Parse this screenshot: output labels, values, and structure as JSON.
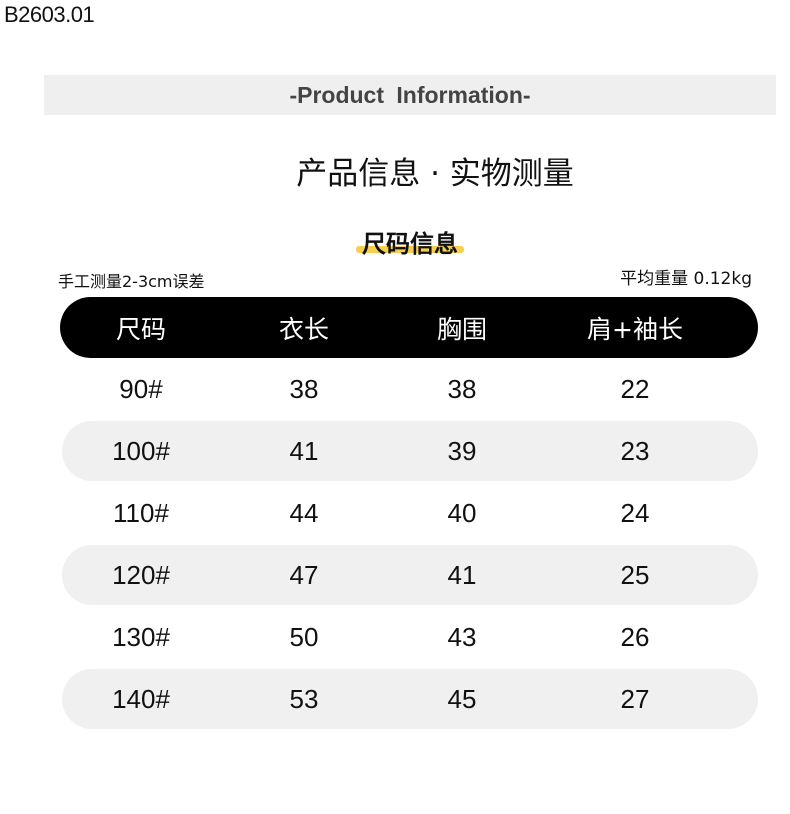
{
  "product_code": "B2603.01",
  "banner": "-Product  Information-",
  "title": "产品信息 · 实物测量",
  "subtitle": "尺码信息",
  "note_left": "手工测量2-3cm误差",
  "note_right": "平均重量 0.12kg",
  "colors": {
    "header_bg": "#000000",
    "row_alt_bg": "#f0f0f0",
    "highlight": "#f6cf52",
    "banner_bg": "#efefef"
  },
  "table": {
    "headers": [
      "尺码",
      "衣长",
      "胸围",
      "肩+袖长"
    ],
    "rows": [
      [
        "90#",
        "38",
        "38",
        "22"
      ],
      [
        "100#",
        "41",
        "39",
        "23"
      ],
      [
        "110#",
        "44",
        "40",
        "24"
      ],
      [
        "120#",
        "47",
        "41",
        "25"
      ],
      [
        "130#",
        "50",
        "43",
        "26"
      ],
      [
        "140#",
        "53",
        "45",
        "27"
      ]
    ]
  }
}
